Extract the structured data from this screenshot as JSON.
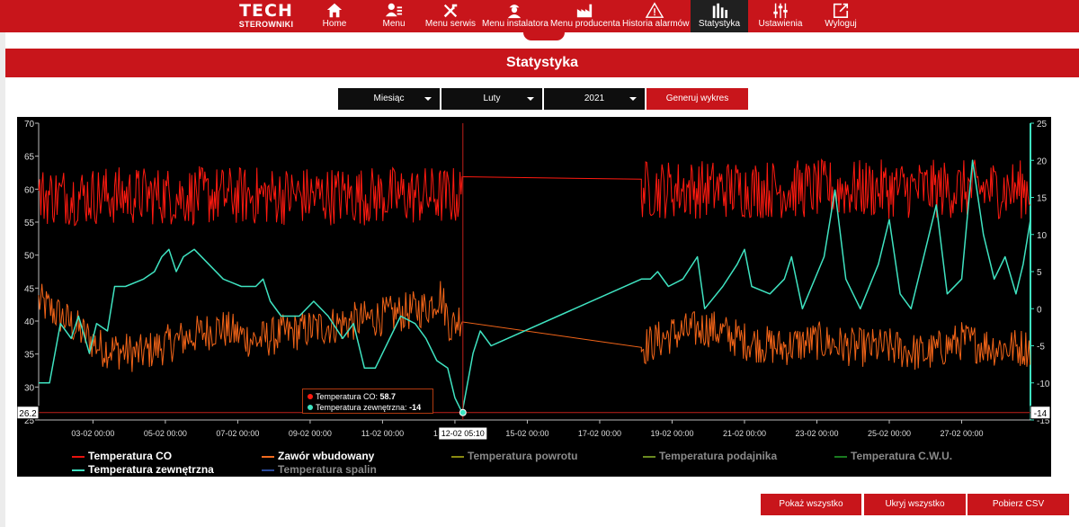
{
  "logo": {
    "big": "TECH",
    "small": "STEROWNIKI"
  },
  "nav": [
    {
      "label": "Home",
      "icon": "home-icon"
    },
    {
      "label": "Menu",
      "icon": "user-icon"
    },
    {
      "label": "Menu serwis",
      "icon": "tools-icon"
    },
    {
      "label": "Menu instalatora",
      "icon": "installer-icon"
    },
    {
      "label": "Menu producenta",
      "icon": "factory-icon"
    },
    {
      "label": "Historia alarmów",
      "icon": "warning-icon"
    },
    {
      "label": "Statystyka",
      "icon": "bar-chart-icon",
      "active": true
    },
    {
      "label": "Ustawienia",
      "icon": "sliders-icon"
    },
    {
      "label": "Wyloguj",
      "icon": "logout-icon"
    }
  ],
  "page_title": "Statystyka",
  "controls": {
    "period": "Miesiąc",
    "month": "Luty",
    "year": "2021",
    "generate": "Generuj wykres"
  },
  "tooltip": {
    "line1_label": "Temperatura CO:",
    "line1_value": "58.7",
    "line2_label": "Temperatura zewnętrzna:",
    "line2_value": "-14",
    "crosshair_x": "12-02 05:10",
    "crosshair_left": "26.2",
    "crosshair_right": "-14"
  },
  "legend": [
    {
      "label": "Temperatura CO",
      "color": "#e8120e",
      "enabled": true
    },
    {
      "label": "Zawór wbudowany",
      "color": "#f06a1e",
      "enabled": true
    },
    {
      "label": "Temperatura powrotu",
      "color": "#8a8a10",
      "enabled": false
    },
    {
      "label": "Temperatura podajnika",
      "color": "#6a8a20",
      "enabled": false
    },
    {
      "label": "Temperatura C.W.U.",
      "color": "#1a7a20",
      "enabled": false
    },
    {
      "label": "Temperatura zewnętrzna",
      "color": "#3ee0c0",
      "enabled": true
    },
    {
      "label": "Temperatura spalin",
      "color": "#2a4a9a",
      "enabled": false
    }
  ],
  "buttons": {
    "show_all": "Pokaż wszystko",
    "hide_all": "Ukryj wszystko",
    "download_csv": "Pobierz CSV"
  },
  "chart_data": {
    "type": "line",
    "x_ticks": [
      "03-02 00:00",
      "05-02 00:00",
      "07-02 00:00",
      "09-02 00:00",
      "11-02 00:00",
      "13-02 00:00",
      "15-02 00:00",
      "17-02 00:00",
      "19-02 00:00",
      "21-02 00:00",
      "23-02 00:00",
      "25-02 00:00",
      "27-02 00:00"
    ],
    "x_range_days": [
      1.5,
      28.9
    ],
    "y_left": {
      "ticks": [
        70,
        65,
        60,
        55,
        50,
        45,
        40,
        35,
        30,
        25
      ],
      "ylim": [
        25,
        70
      ]
    },
    "y_right": {
      "ticks": [
        25,
        20,
        15,
        10,
        5,
        0,
        -5,
        -10,
        -15
      ],
      "ylim": [
        -15,
        25
      ]
    },
    "gap_days": [
      13.2,
      18.15
    ],
    "series": [
      {
        "name": "Temperatura CO",
        "axis": "left",
        "color": "#ff1a10",
        "mean": 59,
        "noise": 4.5,
        "segments": [
          {
            "from": 1.5,
            "to": 13.2
          },
          {
            "from": 18.15,
            "to": 28.9
          }
        ],
        "bridge": [
          [
            13.2,
            58.7
          ],
          [
            18.15,
            61.5
          ]
        ]
      },
      {
        "name": "Zawór wbudowany",
        "axis": "left",
        "color": "#f26418",
        "points": [
          [
            1.5,
            43
          ],
          [
            2.3,
            40
          ],
          [
            3.2,
            36
          ],
          [
            4.3,
            35
          ],
          [
            5.3,
            37
          ],
          [
            6.5,
            39
          ],
          [
            7.5,
            37
          ],
          [
            8.2,
            38
          ],
          [
            9.2,
            39
          ],
          [
            10.3,
            40
          ],
          [
            11.3,
            41
          ],
          [
            12.2,
            42
          ],
          [
            12.6,
            44
          ],
          [
            12.9,
            39
          ],
          [
            13.2,
            41
          ],
          [
            18.15,
            36
          ],
          [
            19,
            38
          ],
          [
            20,
            39
          ],
          [
            21,
            37
          ],
          [
            22,
            36
          ],
          [
            23,
            37
          ],
          [
            24,
            36
          ],
          [
            25,
            36
          ],
          [
            26,
            35
          ],
          [
            27,
            37
          ],
          [
            28,
            36
          ],
          [
            28.9,
            36
          ]
        ],
        "noise": 3
      },
      {
        "name": "Temperatura zewnętrzna",
        "axis": "right",
        "color": "#3fe3c1",
        "points": [
          [
            1.5,
            -10
          ],
          [
            1.8,
            -10
          ],
          [
            2.1,
            -2
          ],
          [
            2.4,
            -4
          ],
          [
            2.6,
            -1
          ],
          [
            2.9,
            -6
          ],
          [
            3.1,
            -2
          ],
          [
            3.4,
            -3
          ],
          [
            3.6,
            3
          ],
          [
            3.9,
            3
          ],
          [
            4.4,
            4
          ],
          [
            4.7,
            5
          ],
          [
            4.9,
            7
          ],
          [
            5.1,
            8
          ],
          [
            5.3,
            5
          ],
          [
            5.5,
            7
          ],
          [
            5.8,
            8
          ],
          [
            6.2,
            6
          ],
          [
            6.6,
            4
          ],
          [
            7.1,
            3
          ],
          [
            7.5,
            3
          ],
          [
            7.7,
            4
          ],
          [
            7.9,
            1
          ],
          [
            8.2,
            -1
          ],
          [
            8.7,
            -1
          ],
          [
            9.1,
            1
          ],
          [
            9.5,
            -1
          ],
          [
            9.9,
            -4
          ],
          [
            10.2,
            -2
          ],
          [
            10.5,
            -8
          ],
          [
            10.8,
            -8
          ],
          [
            11,
            -6
          ],
          [
            11.3,
            -3
          ],
          [
            11.5,
            -1
          ],
          [
            11.9,
            -2
          ],
          [
            12.2,
            -4
          ],
          [
            12.5,
            -7
          ],
          [
            12.8,
            -8
          ],
          [
            13.0,
            -12
          ],
          [
            13.2,
            -14
          ],
          [
            13.5,
            -6
          ],
          [
            13.7,
            -3
          ],
          [
            14,
            -5
          ],
          [
            18.15,
            4
          ],
          [
            18.4,
            4
          ],
          [
            18.6,
            5
          ],
          [
            18.9,
            3
          ],
          [
            19.3,
            4
          ],
          [
            19.7,
            7
          ],
          [
            19.9,
            0
          ],
          [
            20.4,
            3
          ],
          [
            20.8,
            6
          ],
          [
            21.0,
            8
          ],
          [
            21.2,
            3
          ],
          [
            21.7,
            2
          ],
          [
            22.1,
            4
          ],
          [
            22.3,
            7
          ],
          [
            22.6,
            0
          ],
          [
            23.2,
            7
          ],
          [
            23.5,
            16
          ],
          [
            23.8,
            4
          ],
          [
            24.2,
            0
          ],
          [
            24.7,
            6
          ],
          [
            25.0,
            12
          ],
          [
            25.3,
            2
          ],
          [
            25.6,
            0
          ],
          [
            26.0,
            8
          ],
          [
            26.3,
            14
          ],
          [
            26.6,
            2
          ],
          [
            27.0,
            4
          ],
          [
            27.3,
            20
          ],
          [
            27.6,
            10
          ],
          [
            27.9,
            4
          ],
          [
            28.2,
            7
          ],
          [
            28.5,
            2
          ],
          [
            28.7,
            6
          ],
          [
            28.9,
            12
          ]
        ]
      }
    ]
  }
}
